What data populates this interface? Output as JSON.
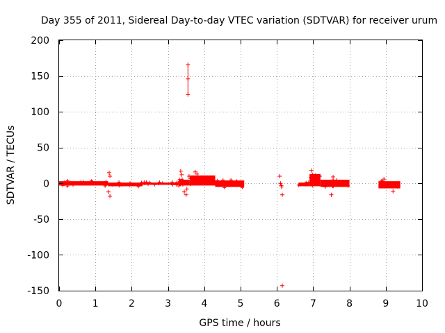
{
  "chart_data": {
    "type": "scatter",
    "title": "Day 355 of 2011, Sidereal Day-to-day VTEC variation (SDTVAR) for receiver urum",
    "xlabel": "GPS time / hours",
    "ylabel": "SDTVAR / TECUs",
    "xlim": [
      0,
      10
    ],
    "ylim": [
      -150,
      200
    ],
    "xticks": [
      0,
      1,
      2,
      3,
      4,
      5,
      6,
      7,
      8,
      9,
      10
    ],
    "yticks": [
      -150,
      -100,
      -50,
      0,
      50,
      100,
      150,
      200
    ],
    "grid": true,
    "color": "#ff0000",
    "series": [
      {
        "name": "SDTVAR",
        "bands": [
          {
            "x_start": 0.0,
            "x_end": 1.35,
            "y_low": -4,
            "y_high": 4
          },
          {
            "x_start": 1.35,
            "x_end": 2.3,
            "y_low": -5,
            "y_high": 2
          },
          {
            "x_start": 2.3,
            "x_end": 3.3,
            "y_low": -3,
            "y_high": 2
          },
          {
            "x_start": 3.3,
            "x_end": 3.6,
            "y_low": -4,
            "y_high": 6
          },
          {
            "x_start": 3.6,
            "x_end": 4.3,
            "y_low": -4,
            "y_high": 12
          },
          {
            "x_start": 4.3,
            "x_end": 5.1,
            "y_low": -6,
            "y_high": 5
          },
          {
            "x_start": 6.6,
            "x_end": 6.9,
            "y_low": -5,
            "y_high": 2
          },
          {
            "x_start": 6.9,
            "x_end": 7.2,
            "y_low": -5,
            "y_high": 14
          },
          {
            "x_start": 7.2,
            "x_end": 8.0,
            "y_low": -6,
            "y_high": 6
          },
          {
            "x_start": 8.8,
            "x_end": 9.4,
            "y_low": -8,
            "y_high": 4
          }
        ],
        "outliers": [
          {
            "x": 1.38,
            "y": 15
          },
          {
            "x": 1.4,
            "y": 10
          },
          {
            "x": 1.36,
            "y": -12
          },
          {
            "x": 1.4,
            "y": -18
          },
          {
            "x": 3.35,
            "y": 17
          },
          {
            "x": 3.38,
            "y": 12
          },
          {
            "x": 3.45,
            "y": -12
          },
          {
            "x": 3.5,
            "y": -16
          },
          {
            "x": 3.55,
            "y": 166
          },
          {
            "x": 3.55,
            "y": 146
          },
          {
            "x": 3.55,
            "y": 124
          },
          {
            "x": 3.58,
            "y": 10
          },
          {
            "x": 3.52,
            "y": -8
          },
          {
            "x": 3.75,
            "y": 16
          },
          {
            "x": 3.8,
            "y": 13
          },
          {
            "x": 6.08,
            "y": 10
          },
          {
            "x": 6.1,
            "y": 0
          },
          {
            "x": 6.12,
            "y": -3
          },
          {
            "x": 6.15,
            "y": -16
          },
          {
            "x": 6.15,
            "y": -143
          },
          {
            "x": 6.13,
            "y": -5
          },
          {
            "x": 6.95,
            "y": 18
          },
          {
            "x": 6.98,
            "y": 12
          },
          {
            "x": 7.5,
            "y": -16
          },
          {
            "x": 7.55,
            "y": 9
          },
          {
            "x": 9.2,
            "y": -11
          },
          {
            "x": 8.95,
            "y": 6
          }
        ],
        "errorbars": [
          {
            "x": 3.55,
            "low": 124,
            "high": 166
          }
        ]
      }
    ]
  }
}
